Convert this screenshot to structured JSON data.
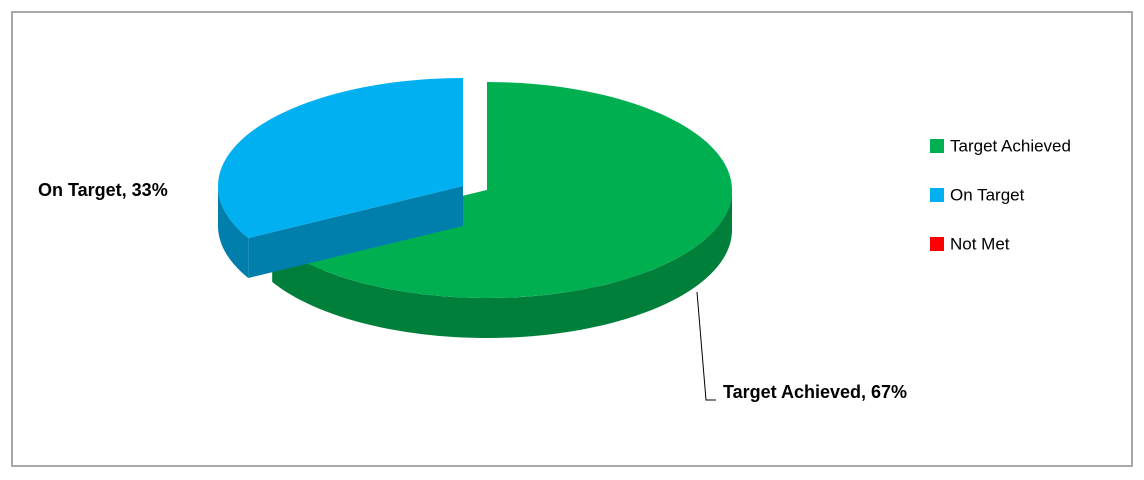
{
  "chart_data": {
    "type": "pie3d",
    "categories": [
      "Target Achieved",
      "On Target",
      "Not Met"
    ],
    "values": [
      67,
      33,
      0
    ],
    "value_labels": [
      "Target Achieved, 67%",
      "On Target, 33%",
      null
    ],
    "colors": [
      "#00b050",
      "#00b0f0",
      "#ff0000"
    ],
    "legend": "right"
  }
}
